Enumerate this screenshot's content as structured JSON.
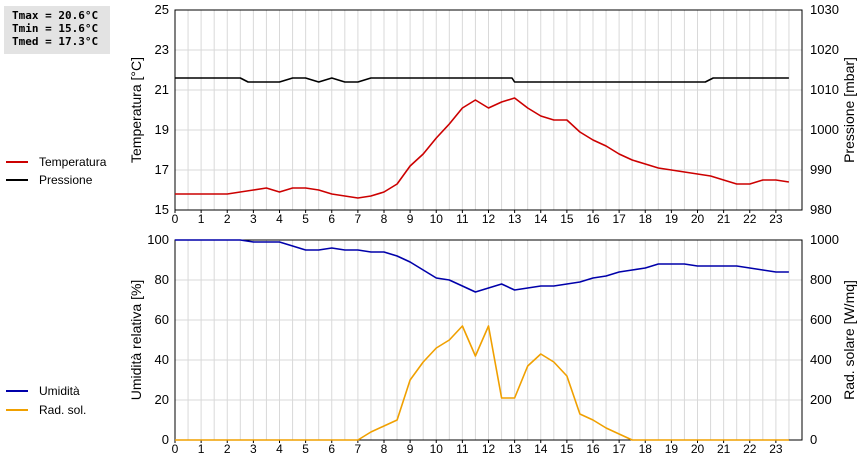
{
  "stats": {
    "tmax": "Tmax = 20.6°C",
    "tmin": "Tmin = 15.6°C",
    "tmed": "Tmed = 17.3°C"
  },
  "legend_top": [
    {
      "label": "Temperatura",
      "color": "#cc0000"
    },
    {
      "label": "Pressione",
      "color": "#000000"
    }
  ],
  "legend_bottom": [
    {
      "label": "Umidità",
      "color": "#0000aa"
    },
    {
      "label": "Rad. sol.",
      "color": "#f0a000"
    }
  ],
  "chart_data": [
    {
      "type": "line",
      "xlabel": "",
      "xticks": [
        "0",
        "1",
        "2",
        "3",
        "4",
        "5",
        "6",
        "7",
        "8",
        "9",
        "10",
        "11",
        "12",
        "13",
        "14",
        "15",
        "16",
        "17",
        "18",
        "19",
        "20",
        "21",
        "22",
        "23"
      ],
      "xlim": [
        0,
        24
      ],
      "grid": true,
      "y_left": {
        "label": "Temperatura [°C]",
        "lim": [
          15,
          25
        ],
        "ticks": [
          15,
          17,
          19,
          21,
          23,
          25
        ]
      },
      "y_right": {
        "label": "Pressione [mbar]",
        "lim": [
          980,
          1030
        ],
        "ticks": [
          980,
          990,
          1000,
          1010,
          1020,
          1030
        ]
      },
      "series": [
        {
          "name": "Temperatura",
          "axis": "left",
          "color": "#cc0000",
          "x": [
            0,
            0.5,
            1,
            1.5,
            2,
            2.5,
            3,
            3.5,
            4,
            4.5,
            5,
            5.5,
            6,
            6.5,
            7,
            7.5,
            8,
            8.5,
            9,
            9.5,
            10,
            10.5,
            11,
            11.5,
            12,
            12.5,
            13,
            13.5,
            14,
            14.5,
            15,
            15.5,
            16,
            16.5,
            17,
            17.5,
            18,
            18.5,
            19,
            19.5,
            20,
            20.5,
            21,
            21.5,
            22,
            22.5,
            23,
            23.5
          ],
          "y": [
            15.8,
            15.8,
            15.8,
            15.8,
            15.8,
            15.9,
            16.0,
            16.1,
            15.9,
            16.1,
            16.1,
            16.0,
            15.8,
            15.7,
            15.6,
            15.7,
            15.9,
            16.3,
            17.2,
            17.8,
            18.6,
            19.3,
            20.1,
            20.5,
            20.1,
            20.4,
            20.6,
            20.1,
            19.7,
            19.5,
            19.5,
            18.9,
            18.5,
            18.2,
            17.8,
            17.5,
            17.3,
            17.1,
            17.0,
            16.9,
            16.8,
            16.7,
            16.5,
            16.3,
            16.3,
            16.5,
            16.5,
            16.4
          ]
        },
        {
          "name": "Pressione",
          "axis": "right",
          "color": "#000000",
          "x": [
            0,
            0.5,
            1,
            1.5,
            2,
            2.5,
            2.8,
            3,
            4,
            4.5,
            5,
            5.5,
            6,
            6.5,
            7,
            7.5,
            8,
            8.5,
            9,
            9.5,
            10,
            10.5,
            11,
            11.5,
            12,
            12.5,
            12.9,
            13,
            13.5,
            14,
            15,
            16,
            17,
            18,
            19,
            20,
            20.3,
            20.6,
            21,
            22,
            23,
            23.5
          ],
          "y": [
            1013,
            1013,
            1013,
            1013,
            1013,
            1013,
            1012,
            1012,
            1012,
            1013,
            1013,
            1012,
            1013,
            1012,
            1012,
            1013,
            1013,
            1013,
            1013,
            1013,
            1013,
            1013,
            1013,
            1013,
            1013,
            1013,
            1013,
            1012,
            1012,
            1012,
            1012,
            1012,
            1012,
            1012,
            1012,
            1012,
            1012,
            1013,
            1013,
            1013,
            1013,
            1013
          ]
        }
      ]
    },
    {
      "type": "line",
      "xlabel": "",
      "xticks": [
        "0",
        "1",
        "2",
        "3",
        "4",
        "5",
        "6",
        "7",
        "8",
        "9",
        "10",
        "11",
        "12",
        "13",
        "14",
        "15",
        "16",
        "17",
        "18",
        "19",
        "20",
        "21",
        "22",
        "23"
      ],
      "xlim": [
        0,
        24
      ],
      "grid": true,
      "y_left": {
        "label": "Umidità relativa [%]",
        "lim": [
          0,
          100
        ],
        "ticks": [
          0,
          20,
          40,
          60,
          80,
          100
        ]
      },
      "y_right": {
        "label": "Rad. solare [W/mq]",
        "lim": [
          0,
          1000
        ],
        "ticks": [
          0,
          200,
          400,
          600,
          800,
          1000
        ]
      },
      "series": [
        {
          "name": "Umidità",
          "axis": "left",
          "color": "#0000aa",
          "x": [
            0,
            0.5,
            1,
            1.5,
            2,
            2.5,
            3,
            3.5,
            4,
            4.5,
            5,
            5.5,
            6,
            6.5,
            7,
            7.5,
            8,
            8.5,
            9,
            9.5,
            10,
            10.5,
            11,
            11.5,
            12,
            12.5,
            13,
            13.5,
            14,
            14.5,
            15,
            15.5,
            16,
            16.5,
            17,
            17.5,
            18,
            18.5,
            19,
            19.5,
            20,
            20.5,
            21,
            21.5,
            22,
            22.5,
            23,
            23.5
          ],
          "y": [
            100,
            100,
            100,
            100,
            100,
            100,
            99,
            99,
            99,
            97,
            95,
            95,
            96,
            95,
            95,
            94,
            94,
            92,
            89,
            85,
            81,
            80,
            77,
            74,
            76,
            78,
            75,
            76,
            77,
            77,
            78,
            79,
            81,
            82,
            84,
            85,
            86,
            88,
            88,
            88,
            87,
            87,
            87,
            87,
            86,
            85,
            84,
            84
          ]
        },
        {
          "name": "Rad. sol.",
          "axis": "right",
          "color": "#f0a000",
          "x": [
            0,
            1,
            2,
            3,
            4,
            5,
            6,
            7,
            7.5,
            8,
            8.5,
            9,
            9.5,
            10,
            10.5,
            11,
            11.5,
            12,
            12.5,
            13,
            13.5,
            14,
            14.5,
            15,
            15.5,
            16,
            16.5,
            17,
            17.5,
            18,
            19,
            20,
            21,
            22,
            23,
            23.5
          ],
          "y": [
            0,
            0,
            0,
            0,
            0,
            0,
            0,
            0,
            40,
            70,
            100,
            300,
            390,
            460,
            500,
            570,
            420,
            570,
            210,
            210,
            370,
            430,
            390,
            320,
            130,
            100,
            60,
            30,
            0,
            0,
            0,
            0,
            0,
            0,
            0,
            0
          ]
        }
      ]
    }
  ]
}
